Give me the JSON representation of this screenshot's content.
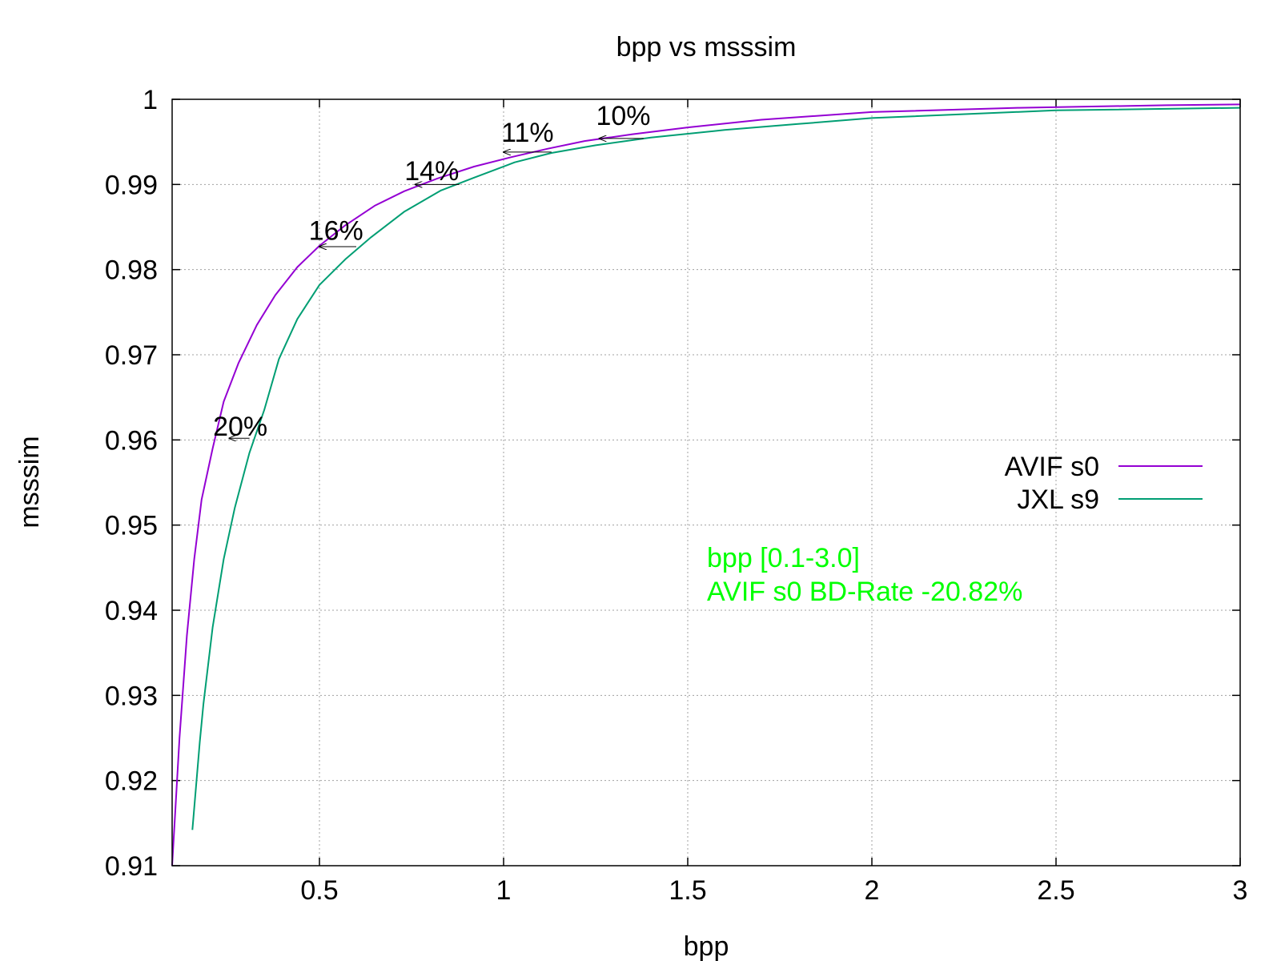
{
  "chart_data": {
    "type": "line",
    "title": "bpp vs msssim",
    "xlabel": "bpp",
    "ylabel": "msssim",
    "xlim": [
      0.1,
      3.0
    ],
    "ylim": [
      0.91,
      1.0
    ],
    "xticks": [
      0.5,
      1,
      1.5,
      2,
      2.5,
      3
    ],
    "yticks": [
      0.91,
      0.92,
      0.93,
      0.94,
      0.95,
      0.96,
      0.97,
      0.98,
      0.99,
      1
    ],
    "grid": true,
    "legend_position": "right-middle",
    "series": [
      {
        "name": "AVIF s0",
        "color": "#9400d3",
        "points": [
          [
            0.1,
            0.91
          ],
          [
            0.12,
            0.925
          ],
          [
            0.14,
            0.937
          ],
          [
            0.16,
            0.946
          ],
          [
            0.18,
            0.953
          ],
          [
            0.21,
            0.959
          ],
          [
            0.24,
            0.9645
          ],
          [
            0.28,
            0.969
          ],
          [
            0.33,
            0.9735
          ],
          [
            0.38,
            0.977
          ],
          [
            0.44,
            0.9803
          ],
          [
            0.5,
            0.9828
          ],
          [
            0.57,
            0.9852
          ],
          [
            0.65,
            0.9875
          ],
          [
            0.73,
            0.9892
          ],
          [
            0.82,
            0.9907
          ],
          [
            0.92,
            0.9921
          ],
          [
            1.02,
            0.9932
          ],
          [
            1.12,
            0.9942
          ],
          [
            1.22,
            0.9951
          ],
          [
            1.35,
            0.9959
          ],
          [
            1.5,
            0.9967
          ],
          [
            1.7,
            0.9976
          ],
          [
            2.0,
            0.9985
          ],
          [
            2.4,
            0.999
          ],
          [
            2.8,
            0.9993
          ],
          [
            3.0,
            0.9994
          ]
        ]
      },
      {
        "name": "JXL s9",
        "color": "#009e73",
        "points": [
          [
            0.155,
            0.9142
          ],
          [
            0.175,
            0.9245
          ],
          [
            0.185,
            0.929
          ],
          [
            0.21,
            0.938
          ],
          [
            0.24,
            0.946
          ],
          [
            0.27,
            0.952
          ],
          [
            0.31,
            0.9585
          ],
          [
            0.35,
            0.9635
          ],
          [
            0.39,
            0.9695
          ],
          [
            0.44,
            0.9742
          ],
          [
            0.5,
            0.9782
          ],
          [
            0.57,
            0.9812
          ],
          [
            0.64,
            0.9838
          ],
          [
            0.73,
            0.9868
          ],
          [
            0.83,
            0.9893
          ],
          [
            0.92,
            0.9908
          ],
          [
            1.03,
            0.9926
          ],
          [
            1.13,
            0.9937
          ],
          [
            1.25,
            0.9946
          ],
          [
            1.4,
            0.9955
          ],
          [
            1.6,
            0.9964
          ],
          [
            1.8,
            0.9971
          ],
          [
            2.0,
            0.9978
          ],
          [
            2.5,
            0.9987
          ],
          [
            3.0,
            0.999
          ]
        ]
      }
    ],
    "annotations": [
      {
        "text": "20%",
        "x": 0.285,
        "y": 0.9605,
        "arrow_from": [
          0.31,
          0.9602
        ],
        "arrow_to": [
          0.255,
          0.9602
        ]
      },
      {
        "text": "16%",
        "x": 0.545,
        "y": 0.9835,
        "arrow_from": [
          0.6,
          0.9827
        ],
        "arrow_to": [
          0.5,
          0.9827
        ]
      },
      {
        "text": "14%",
        "x": 0.805,
        "y": 0.9905,
        "arrow_from": [
          0.88,
          0.99
        ],
        "arrow_to": [
          0.76,
          0.99
        ]
      },
      {
        "text": "11%",
        "x": 1.065,
        "y": 0.995,
        "arrow_from": [
          1.13,
          0.9938
        ],
        "arrow_to": [
          1.0,
          0.9938
        ]
      },
      {
        "text": "10%",
        "x": 1.325,
        "y": 0.997,
        "arrow_from": [
          1.38,
          0.9954
        ],
        "arrow_to": [
          1.26,
          0.9954
        ]
      }
    ],
    "notes": {
      "color": "#00ff00",
      "lines": [
        "bpp [0.1-3.0]",
        "AVIF s0 BD-Rate -20.82%"
      ]
    }
  }
}
